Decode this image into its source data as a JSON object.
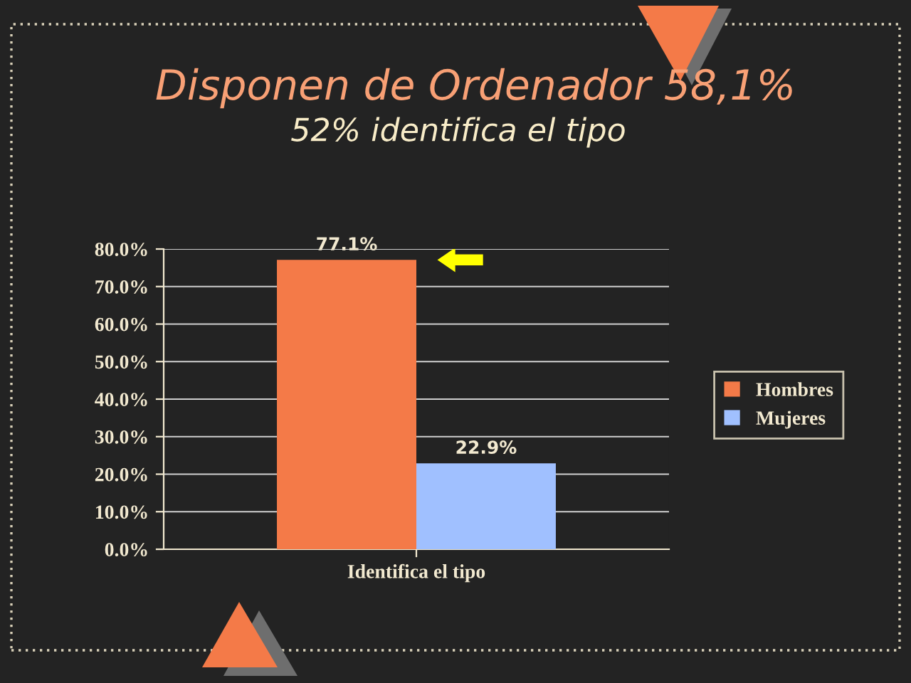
{
  "chart_data": {
    "type": "bar",
    "title": "Disponen de Ordenador 58,1%",
    "subtitle": "52% identifica el tipo",
    "categories": [
      "Identifica el tipo"
    ],
    "series": [
      {
        "name": "Hombres",
        "color": "#f47a48",
        "values": [
          77.1
        ],
        "value_labels": [
          "77.1%"
        ]
      },
      {
        "name": "Mujeres",
        "color": "#a0c0ff",
        "values": [
          22.9
        ],
        "value_labels": [
          "22.9%"
        ]
      }
    ],
    "ylim": [
      0,
      80
    ],
    "yticks": [
      {
        "value": 0,
        "label": "0.0%"
      },
      {
        "value": 10,
        "label": "10.0%"
      },
      {
        "value": 20,
        "label": "20.0%"
      },
      {
        "value": 30,
        "label": "30.0%"
      },
      {
        "value": 40,
        "label": "40.0%"
      },
      {
        "value": 50,
        "label": "50.0%"
      },
      {
        "value": 60,
        "label": "60.0%"
      },
      {
        "value": 70,
        "label": "70.0%"
      },
      {
        "value": 80,
        "label": "80.0%"
      }
    ],
    "grid": "y",
    "legend": "right"
  }
}
